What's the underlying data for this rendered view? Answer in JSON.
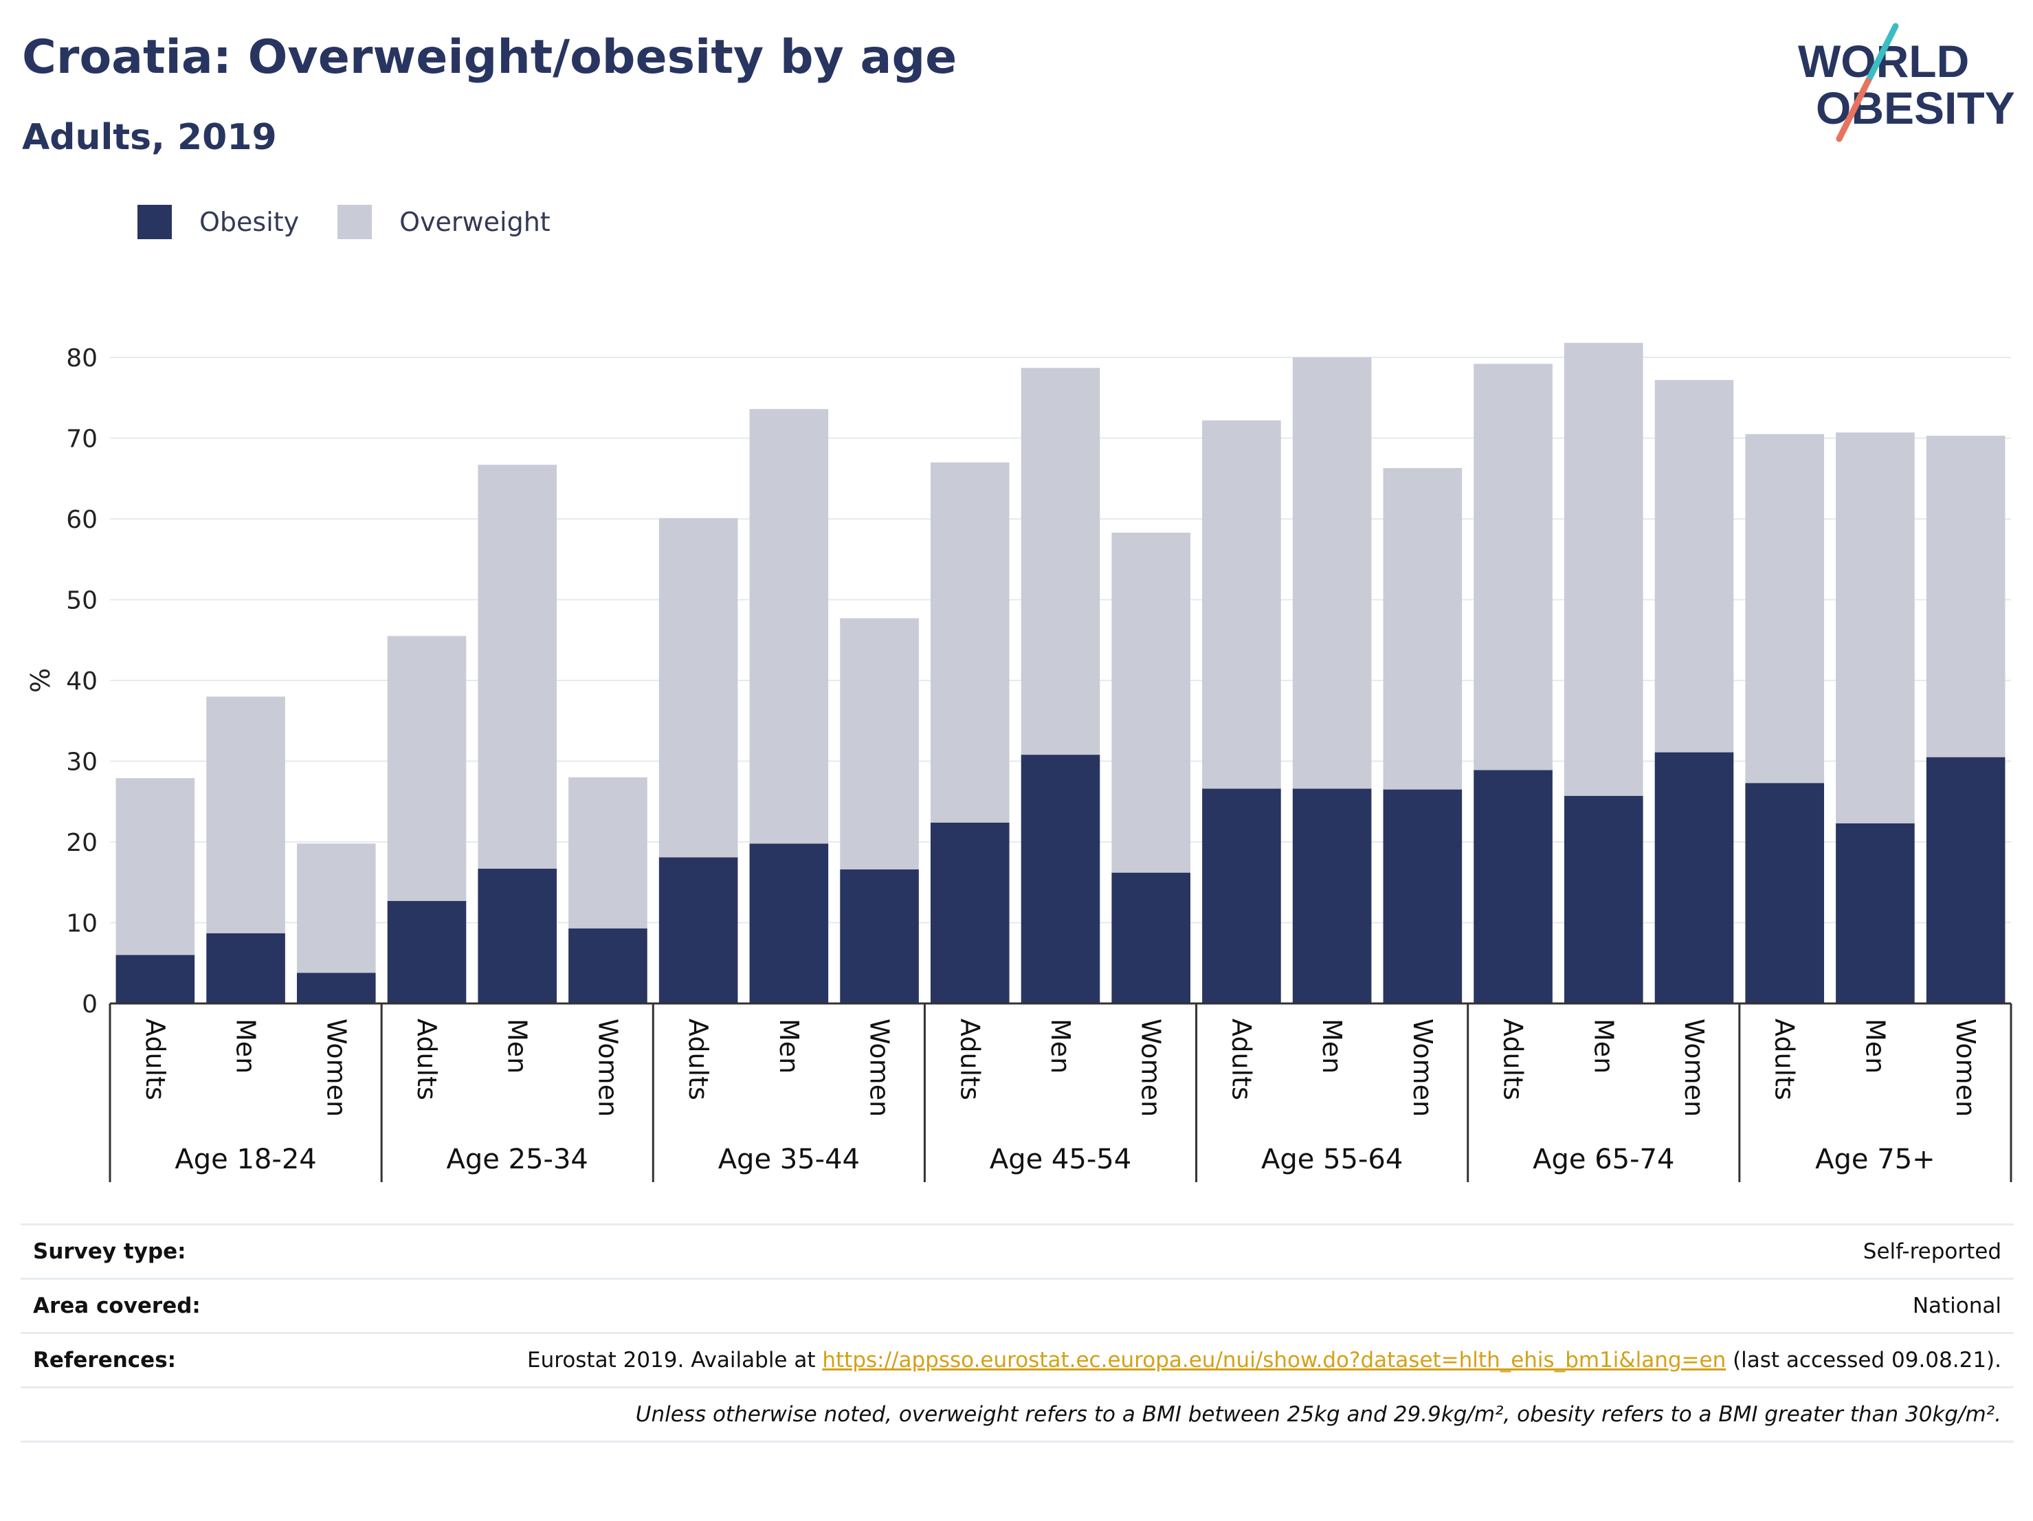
{
  "header": {
    "title": "Croatia: Overweight/obesity by age",
    "subtitle": "Adults, 2019"
  },
  "logo": {
    "line1": "WORLD",
    "line2": "OBESITY",
    "icon": "world-obesity-logo"
  },
  "colors": {
    "obesity": "#283560",
    "overweight": "#c9cbd6",
    "grid": "#e6e9ee",
    "axis": "#333333",
    "accent_teal": "#3cbcc3",
    "accent_coral": "#e8735f"
  },
  "legend": {
    "items": [
      {
        "label": "Obesity"
      },
      {
        "label": "Overweight"
      }
    ]
  },
  "chart_data": {
    "type": "bar",
    "stacked": true,
    "ylabel": "%",
    "ylim": [
      0,
      80
    ],
    "yticks": [
      0,
      10,
      20,
      30,
      40,
      50,
      60,
      70,
      80
    ],
    "grid": true,
    "legend_position": "top-left",
    "group_labels": [
      "Age 18-24",
      "Age 25-34",
      "Age 35-44",
      "Age 45-54",
      "Age 55-64",
      "Age 65-74",
      "Age 75+"
    ],
    "sub_labels": [
      "Adults",
      "Men",
      "Women"
    ],
    "series": [
      {
        "name": "Obesity",
        "values": [
          6.0,
          8.7,
          3.8,
          12.7,
          16.7,
          9.3,
          18.1,
          19.8,
          16.6,
          22.4,
          30.8,
          16.2,
          26.6,
          26.6,
          26.5,
          28.9,
          25.7,
          31.1,
          27.3,
          22.3,
          30.5
        ]
      },
      {
        "name": "Overweight",
        "values": [
          21.9,
          29.3,
          16.0,
          32.8,
          50.0,
          18.7,
          42.0,
          53.8,
          31.1,
          44.6,
          47.9,
          42.1,
          45.6,
          53.4,
          39.8,
          50.3,
          56.1,
          46.1,
          43.2,
          48.4,
          39.8
        ]
      }
    ]
  },
  "meta": {
    "survey_type_label": "Survey type:",
    "survey_type_value": "Self-reported",
    "area_label": "Area covered:",
    "area_value": "National",
    "references_label": "References:",
    "references_prefix": "Eurostat 2019. Available at ",
    "references_link": "https://appsso.eurostat.ec.europa.eu/nui/show.do?dataset=hlth_ehis_bm1i&lang=en",
    "references_suffix": " (last accessed 09.08.21).",
    "note": "Unless otherwise noted, overweight refers to a BMI between 25kg and 29.9kg/m², obesity refers to a BMI greater than 30kg/m²."
  }
}
